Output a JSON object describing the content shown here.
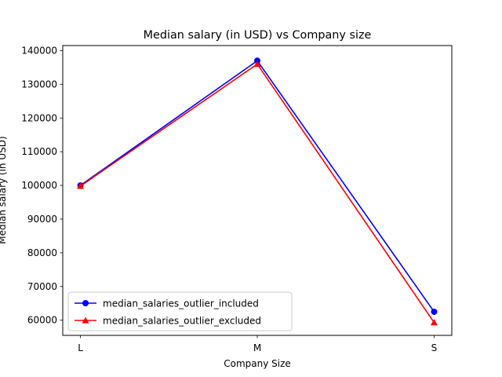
{
  "chart_data": {
    "type": "line",
    "title": "Median salary (in USD) vs Company size",
    "xlabel": "Company Size",
    "ylabel": "Median salary (in USD)",
    "categories": [
      "L",
      "M",
      "S"
    ],
    "ylim": [
      55500,
      141500
    ],
    "yticks": [
      60000,
      70000,
      80000,
      90000,
      100000,
      110000,
      120000,
      130000,
      140000
    ],
    "grid": false,
    "legend_position": "lower-left",
    "series": [
      {
        "name": "median_salaries_outlier_included",
        "values": [
          100000,
          137000,
          62500
        ],
        "color": "#0000ff",
        "marker": "circle"
      },
      {
        "name": "median_salaries_outlier_excluded",
        "values": [
          99800,
          136000,
          59300
        ],
        "color": "#ff0000",
        "marker": "triangle"
      }
    ]
  }
}
